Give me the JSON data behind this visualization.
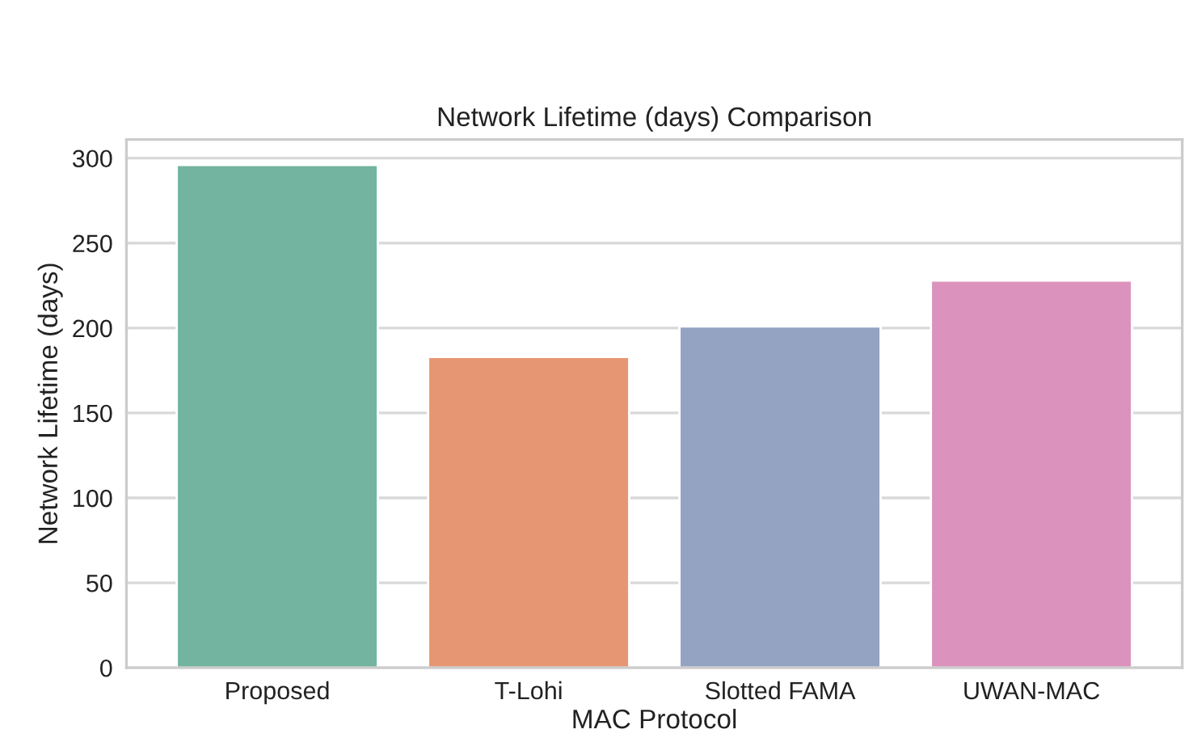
{
  "chart_data": {
    "type": "bar",
    "title": "Network Lifetime (days) Comparison",
    "xlabel": "MAC Protocol",
    "ylabel": "Network Lifetime (days)",
    "categories": [
      "Proposed",
      "T-Lohi",
      "Slotted FAMA",
      "UWAN-MAC"
    ],
    "values": [
      296,
      183,
      201,
      228
    ],
    "colors": [
      "#72b49f",
      "#e79673",
      "#94a3c2",
      "#db93be"
    ],
    "ylim": [
      0,
      311
    ],
    "yticks": [
      0,
      50,
      100,
      150,
      200,
      250,
      300
    ],
    "grid": "y"
  }
}
